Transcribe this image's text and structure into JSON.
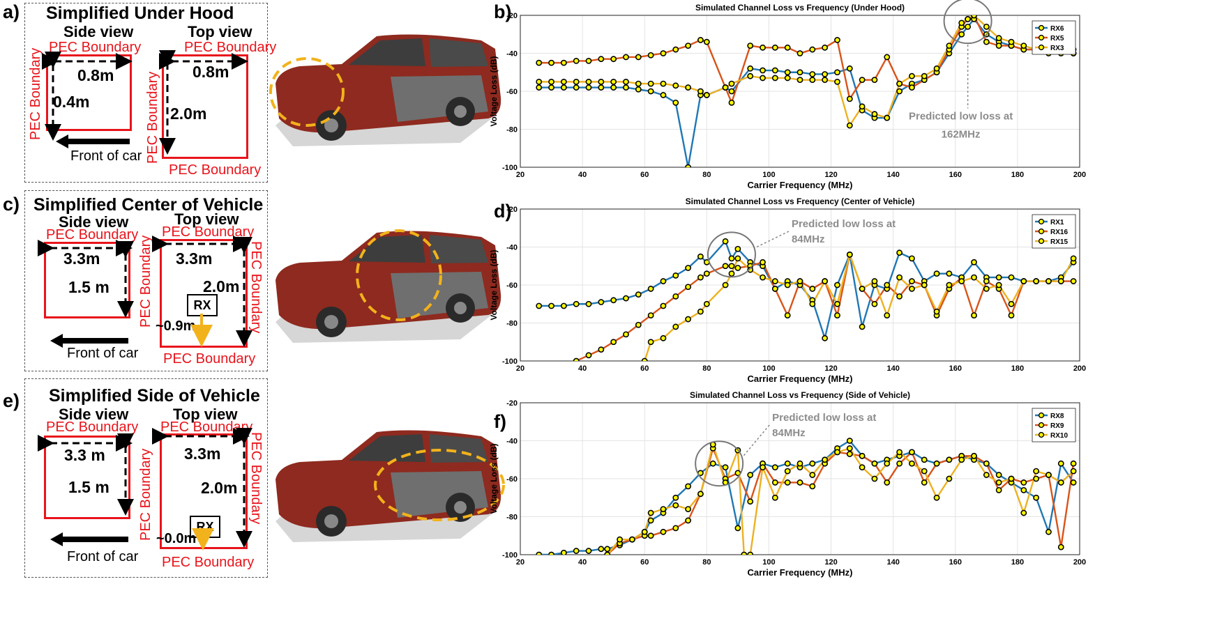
{
  "row_labels": [
    "a)",
    "b)",
    "c)",
    "d)",
    "e)",
    "f)"
  ],
  "diagrams": [
    {
      "title": "Simplified Under Hood",
      "side_label": "Side view",
      "top_label": "Top view",
      "side_pec_top": "PEC Boundary",
      "side_pec_left": "PEC Boundary",
      "top_pec_top": "PEC Boundary",
      "top_pec_left": "PEC Boundary",
      "top_pec_bottom": "PEC Boundary",
      "side_width": "0.8m",
      "side_height": "0.4m",
      "top_width": "0.8m",
      "top_depth": "2.0m",
      "front_label": "Front of car"
    },
    {
      "title": "Simplified Center of Vehicle",
      "side_label": "Side view",
      "top_label": "Top view",
      "side_pec_top": "PEC Boundary",
      "top_pec_top": "PEC Boundary",
      "top_pec_left": "PEC Boundary",
      "top_pec_right": "PEC Boundary",
      "top_pec_bottom": "PEC Boundary",
      "side_width": "3.3m",
      "side_height": "1.5 m",
      "top_width": "3.3m",
      "top_depth": "2.0m",
      "rx_label": "RX",
      "rx_offset": "~0.9m",
      "front_label": "Front of car"
    },
    {
      "title": "Simplified Side of Vehicle",
      "side_label": "Side view",
      "top_label": "Top view",
      "side_pec_top": "PEC Boundary",
      "top_pec_top": "PEC Boundary",
      "top_pec_left": "PEC Boundary",
      "top_pec_right": "PEC Boundary",
      "top_pec_bottom": "PEC Boundary",
      "side_width": "3.3 m",
      "side_height": "1.5 m",
      "top_width": "3.3m",
      "top_depth": "2.0m",
      "rx_label": "RX",
      "rx_offset": "~0.0m",
      "front_label": "Front of car"
    }
  ],
  "colors": {
    "pec_red": "#e8141b",
    "highlight_yellow": "#f2b21b",
    "car_body": "#8e2a1f",
    "series_blue": "#1f77b4",
    "series_orange": "#d95319",
    "series_yellow": "#edb120",
    "marker_fill": "#ffff00"
  },
  "chart_data": [
    {
      "type": "line",
      "title": "Simulated Channel Loss vs Frequency (Under Hood)",
      "xlabel": "Carrier Frequency (MHz)",
      "ylabel": "Voltage Loss (dB)",
      "xlim": [
        20,
        200
      ],
      "ylim": [
        -100,
        -20
      ],
      "xticks": [
        20,
        40,
        60,
        80,
        100,
        120,
        140,
        160,
        180,
        200
      ],
      "yticks": [
        -20,
        -40,
        -60,
        -80,
        -100
      ],
      "grid": true,
      "legend_position": "top-right",
      "annotation": {
        "line1": "Predicted low loss at",
        "line2": "162MHz",
        "circle_x": 164,
        "circle_y": -23,
        "target_x": 164,
        "target_y": -30
      },
      "series": [
        {
          "name": "RX6",
          "x": [
            26,
            30,
            34,
            38,
            42,
            46,
            50,
            54,
            58,
            62,
            66,
            70,
            74,
            78,
            80,
            86,
            88,
            94,
            98,
            102,
            106,
            110,
            114,
            118,
            122,
            126,
            130,
            134,
            138,
            142,
            146,
            150,
            154,
            158,
            162,
            164,
            166,
            170,
            174,
            178,
            182,
            186,
            190,
            194,
            198
          ],
          "y": [
            -58,
            -58,
            -58,
            -58,
            -58,
            -58,
            -58,
            -58,
            -59,
            -60,
            -62,
            -66,
            -100,
            -62,
            -62,
            -58,
            -60,
            -48,
            -49,
            -49,
            -50,
            -50,
            -51,
            -51,
            -50,
            -48,
            -70,
            -74,
            -74,
            -60,
            -56,
            -54,
            -50,
            -40,
            -30,
            -26,
            -22,
            -30,
            -34,
            -36,
            -38,
            -38,
            -40,
            -40,
            -40
          ]
        },
        {
          "name": "RX5",
          "x": [
            26,
            30,
            34,
            38,
            42,
            46,
            50,
            54,
            58,
            62,
            66,
            70,
            74,
            78,
            80,
            86,
            88,
            94,
            98,
            102,
            106,
            110,
            114,
            118,
            122,
            126,
            130,
            134,
            138,
            142,
            146,
            150,
            154,
            158,
            162,
            164,
            166,
            170,
            174,
            178,
            182,
            186,
            190,
            194,
            198
          ],
          "y": [
            -45,
            -45,
            -45,
            -44,
            -44,
            -43,
            -43,
            -42,
            -42,
            -41,
            -40,
            -38,
            -36,
            -33,
            -34,
            -58,
            -66,
            -36,
            -37,
            -37,
            -37,
            -40,
            -38,
            -37,
            -33,
            -64,
            -54,
            -54,
            -42,
            -56,
            -58,
            -54,
            -50,
            -38,
            -26,
            -22,
            -20,
            -34,
            -36,
            -36,
            -38,
            -38,
            -38,
            -38,
            -40
          ]
        },
        {
          "name": "RX3",
          "x": [
            26,
            30,
            34,
            38,
            42,
            46,
            50,
            54,
            58,
            62,
            66,
            70,
            74,
            78,
            80,
            86,
            88,
            94,
            98,
            102,
            106,
            110,
            114,
            118,
            122,
            126,
            130,
            134,
            138,
            142,
            146,
            150,
            154,
            158,
            162,
            164,
            166,
            170,
            174,
            178,
            182,
            186,
            190,
            194,
            198
          ],
          "y": [
            -55,
            -55,
            -55,
            -55,
            -55,
            -55,
            -55,
            -55,
            -56,
            -56,
            -56,
            -57,
            -58,
            -60,
            -62,
            -58,
            -56,
            -52,
            -53,
            -53,
            -53,
            -54,
            -54,
            -54,
            -55,
            -78,
            -68,
            -72,
            -74,
            -56,
            -52,
            -52,
            -48,
            -36,
            -24,
            -22,
            -20,
            -26,
            -32,
            -34,
            -36,
            -38,
            -38,
            -38,
            -38
          ]
        }
      ]
    },
    {
      "type": "line",
      "title": "Simulated Channel Loss vs Frequency (Center of Vehicle)",
      "xlabel": "Carrier Frequency (MHz)",
      "ylabel": "Voltage Loss (dB)",
      "xlim": [
        20,
        200
      ],
      "ylim": [
        -100,
        -20
      ],
      "xticks": [
        20,
        40,
        60,
        80,
        100,
        120,
        140,
        160,
        180,
        200
      ],
      "yticks": [
        -20,
        -40,
        -60,
        -80,
        -100
      ],
      "grid": true,
      "legend_position": "top-right",
      "annotation": {
        "line1": "Predicted low loss at",
        "line2": "84MHz",
        "circle_x": 88,
        "circle_y": -44,
        "target_x": 96,
        "target_y": -40
      },
      "series": [
        {
          "name": "RX1",
          "x": [
            26,
            30,
            34,
            38,
            42,
            46,
            50,
            54,
            58,
            62,
            66,
            70,
            74,
            78,
            80,
            86,
            88,
            90,
            94,
            98,
            102,
            106,
            110,
            114,
            118,
            122,
            126,
            130,
            134,
            138,
            142,
            146,
            150,
            154,
            158,
            162,
            166,
            170,
            174,
            178,
            182,
            186,
            190,
            194,
            198
          ],
          "y": [
            -71,
            -71,
            -71,
            -70,
            -70,
            -69,
            -68,
            -67,
            -65,
            -62,
            -58,
            -55,
            -51,
            -45,
            -48,
            -37,
            -46,
            -41,
            -48,
            -50,
            -62,
            -58,
            -60,
            -68,
            -88,
            -60,
            -44,
            -82,
            -60,
            -62,
            -43,
            -46,
            -58,
            -54,
            -54,
            -56,
            -48,
            -56,
            -56,
            -56,
            -58,
            -58,
            -58,
            -56,
            -48
          ]
        },
        {
          "name": "RX16",
          "x": [
            38,
            42,
            46,
            50,
            54,
            58,
            62,
            66,
            70,
            74,
            78,
            80,
            86,
            88,
            90,
            94,
            98,
            102,
            106,
            110,
            114,
            118,
            122,
            126,
            130,
            134,
            138,
            142,
            146,
            150,
            154,
            158,
            162,
            166,
            170,
            174,
            178,
            182,
            186,
            190,
            194,
            198
          ],
          "y": [
            -100,
            -97,
            -94,
            -90,
            -86,
            -81,
            -76,
            -71,
            -66,
            -61,
            -56,
            -54,
            -50,
            -50,
            -51,
            -50,
            -48,
            -62,
            -76,
            -58,
            -62,
            -58,
            -76,
            -44,
            -62,
            -70,
            -60,
            -66,
            -58,
            -60,
            -76,
            -62,
            -56,
            -76,
            -58,
            -62,
            -76,
            -58,
            -58,
            -58,
            -58,
            -58
          ]
        },
        {
          "name": "RX15",
          "x": [
            60,
            62,
            66,
            70,
            74,
            78,
            80,
            86,
            88,
            90,
            94,
            98,
            102,
            106,
            110,
            114,
            118,
            122,
            126,
            130,
            134,
            138,
            142,
            146,
            150,
            154,
            158,
            162,
            166,
            170,
            174,
            178,
            182,
            186,
            190,
            194,
            198
          ],
          "y": [
            -100,
            -90,
            -88,
            -82,
            -78,
            -74,
            -70,
            -60,
            -54,
            -46,
            -52,
            -56,
            -58,
            -60,
            -58,
            -70,
            -58,
            -70,
            -44,
            -62,
            -58,
            -76,
            -56,
            -62,
            -60,
            -74,
            -60,
            -58,
            -56,
            -62,
            -60,
            -70,
            -58,
            -58,
            -58,
            -58,
            -46
          ]
        }
      ]
    },
    {
      "type": "line",
      "title": "Simulated Channel Loss vs Frequency (Side of Vehicle)",
      "xlabel": "Carrier Frequency (MHz)",
      "ylabel": "Voltage Loss (dB)",
      "xlim": [
        20,
        200
      ],
      "ylim": [
        -100,
        -20
      ],
      "xticks": [
        20,
        40,
        60,
        80,
        100,
        120,
        140,
        160,
        180,
        200
      ],
      "yticks": [
        -20,
        -40,
        -60,
        -80,
        -100
      ],
      "grid": true,
      "legend_position": "top-right",
      "annotation": {
        "line1": "Predicted low loss at",
        "line2": "84MHz",
        "circle_x": 84,
        "circle_y": -52,
        "target_x": 90,
        "target_y": -44
      },
      "series": [
        {
          "name": "RX8",
          "x": [
            26,
            30,
            34,
            38,
            42,
            46,
            48,
            52,
            56,
            60,
            62,
            66,
            70,
            74,
            78,
            82,
            86,
            90,
            94,
            98,
            102,
            106,
            110,
            114,
            118,
            122,
            126,
            130,
            134,
            138,
            142,
            146,
            150,
            154,
            158,
            162,
            166,
            170,
            174,
            178,
            182,
            186,
            190,
            194,
            198
          ],
          "y": [
            -100,
            -100,
            -99,
            -98,
            -98,
            -97,
            -97,
            -95,
            -92,
            -88,
            -82,
            -78,
            -70,
            -64,
            -57,
            -52,
            -54,
            -86,
            -58,
            -52,
            -54,
            -52,
            -54,
            -52,
            -50,
            -44,
            -40,
            -48,
            -52,
            -50,
            -48,
            -46,
            -50,
            -52,
            -50,
            -48,
            -50,
            -52,
            -58,
            -62,
            -66,
            -70,
            -88,
            -52,
            -62
          ]
        },
        {
          "name": "RX9",
          "x": [
            48,
            52,
            56,
            60,
            62,
            66,
            70,
            74,
            78,
            82,
            86,
            90,
            94,
            98,
            102,
            106,
            110,
            114,
            118,
            122,
            126,
            130,
            134,
            138,
            142,
            146,
            150,
            154,
            158,
            162,
            166,
            170,
            174,
            178,
            182,
            186,
            190,
            194,
            198
          ],
          "y": [
            -100,
            -94,
            -92,
            -90,
            -90,
            -88,
            -86,
            -82,
            -68,
            -44,
            -60,
            -57,
            -72,
            -52,
            -62,
            -62,
            -62,
            -64,
            -52,
            -46,
            -47,
            -48,
            -52,
            -62,
            -52,
            -46,
            -62,
            -52,
            -50,
            -48,
            -48,
            -52,
            -66,
            -60,
            -62,
            -60,
            -58,
            -96,
            -52
          ]
        },
        {
          "name": "RX10",
          "x": [
            48,
            52,
            56,
            60,
            62,
            66,
            70,
            74,
            78,
            82,
            86,
            90,
            92,
            94,
            98,
            102,
            106,
            110,
            114,
            118,
            122,
            126,
            130,
            134,
            138,
            142,
            146,
            150,
            154,
            158,
            162,
            166,
            170,
            174,
            178,
            182,
            186,
            190,
            194,
            198
          ],
          "y": [
            -100,
            -92,
            -92,
            -88,
            -78,
            -76,
            -74,
            -76,
            -68,
            -42,
            -62,
            -45,
            -100,
            -100,
            -54,
            -70,
            -56,
            -52,
            -58,
            -50,
            -46,
            -44,
            -54,
            -60,
            -52,
            -46,
            -52,
            -56,
            -70,
            -60,
            -50,
            -48,
            -58,
            -62,
            -60,
            -78,
            -56,
            -58,
            -62,
            -56
          ]
        }
      ]
    }
  ]
}
